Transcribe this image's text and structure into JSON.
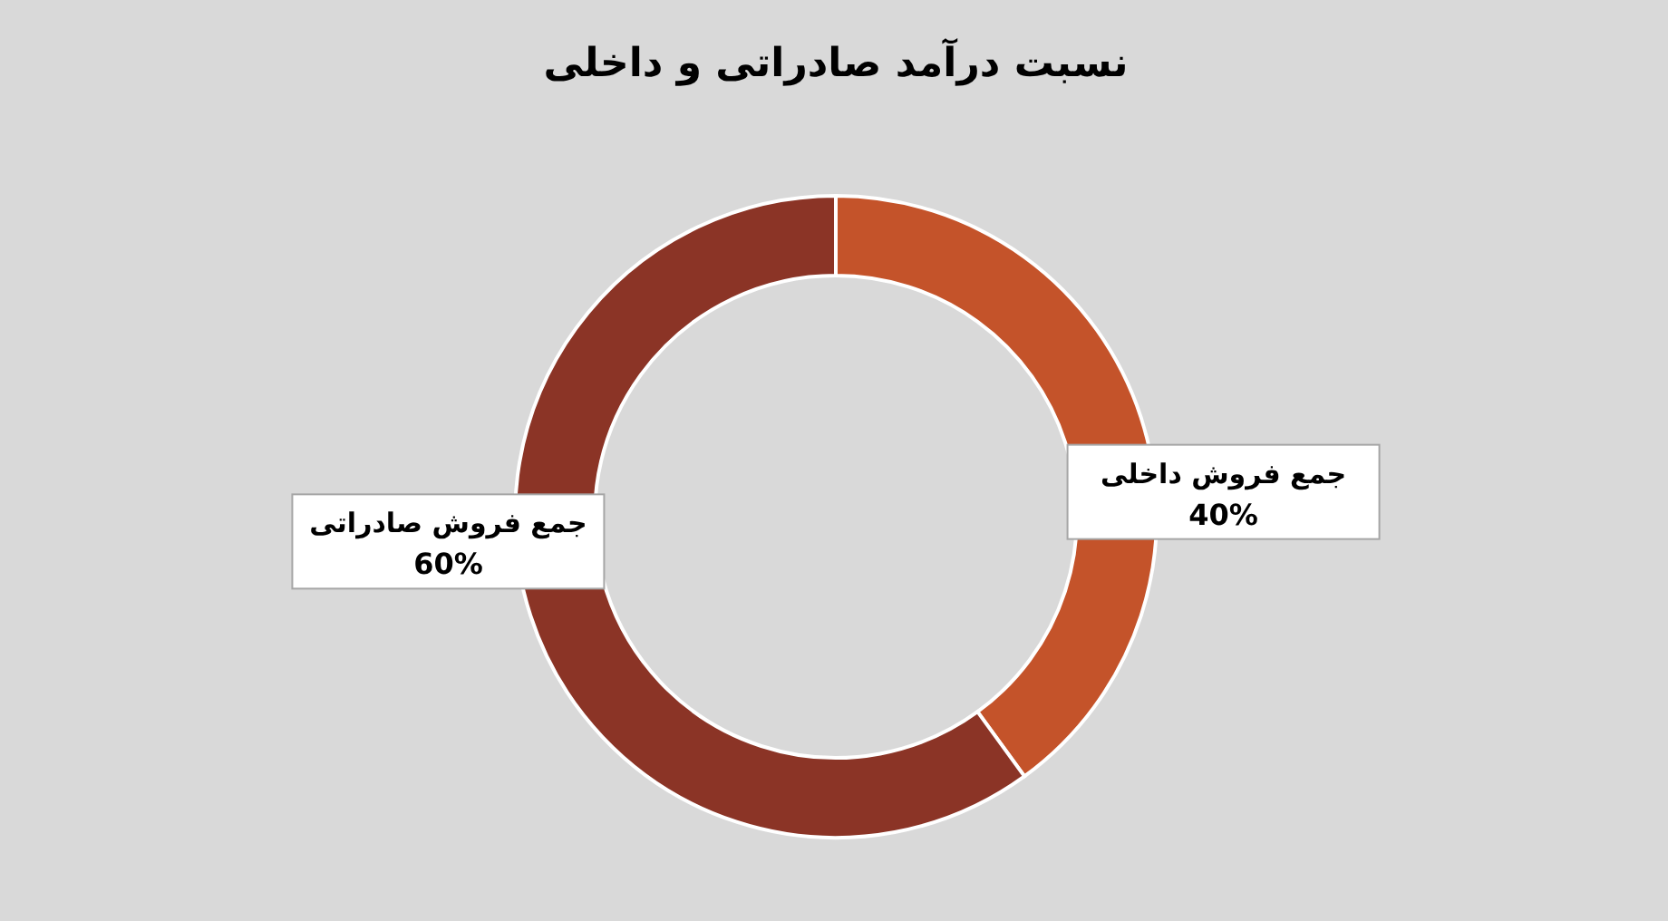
{
  "chart_data": {
    "type": "donut",
    "title": "نسبت درآمد صادراتی و داخلی",
    "categories": [
      "جمع فروش داخلی",
      "جمع فروش صادراتی"
    ],
    "values": [
      40,
      60
    ],
    "value_labels": [
      "40%",
      "60%"
    ],
    "colors": [
      "#c4532a",
      "#8b3426"
    ]
  }
}
